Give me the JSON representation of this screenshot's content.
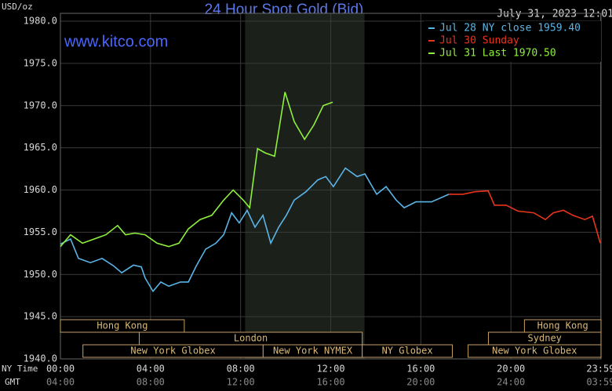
{
  "chart_data": {
    "type": "line",
    "title": "24 Hour Spot Gold (Bid)",
    "timestamp": "July 31, 2023 12:01",
    "y_unit": "USD/oz",
    "watermark": "www.kitco.com",
    "x_label": "NY Time",
    "secondary_x_label": "GMT",
    "xlim": [
      0,
      24
    ],
    "ylim": [
      1940,
      1980
    ],
    "xticks": [
      {
        "value": 0,
        "label": "00:00"
      },
      {
        "value": 4,
        "label": "04:00"
      },
      {
        "value": 8,
        "label": "08:00"
      },
      {
        "value": 12,
        "label": "12:00"
      },
      {
        "value": 16,
        "label": "16:00"
      },
      {
        "value": 20,
        "label": "20:00"
      },
      {
        "value": 23.98,
        "label": "23:59"
      }
    ],
    "secondary_xticks": [
      {
        "value": 0,
        "label": "04:00"
      },
      {
        "value": 4,
        "label": "08:00"
      },
      {
        "value": 8,
        "label": "12:00"
      },
      {
        "value": 12,
        "label": "16:00"
      },
      {
        "value": 16,
        "label": "20:00"
      },
      {
        "value": 20,
        "label": "24:00"
      },
      {
        "value": 23.98,
        "label": "03:59"
      }
    ],
    "yticks": [
      {
        "value": 1940,
        "label": "1940.0"
      },
      {
        "value": 1945,
        "label": "1945.0"
      },
      {
        "value": 1950,
        "label": "1950.0"
      },
      {
        "value": 1955,
        "label": "1955.0"
      },
      {
        "value": 1960,
        "label": "1960.0"
      },
      {
        "value": 1965,
        "label": "1965.0"
      },
      {
        "value": 1970,
        "label": "1970.0"
      },
      {
        "value": 1975,
        "label": "1975.0"
      },
      {
        "value": 1980,
        "label": "1980.0"
      }
    ],
    "grid": true,
    "legend": "top-right",
    "highlight_span": [
      8.2,
      13.5
    ],
    "sessions": [
      {
        "label": "Hong Kong",
        "start": 0,
        "end": 5.5,
        "row": 0
      },
      {
        "label": "Hong Kong",
        "start": 20.6,
        "end": 24,
        "row": 0
      },
      {
        "label": "London",
        "start": 3.5,
        "end": 13.4,
        "row": 1
      },
      {
        "label": "Sydney",
        "start": 19.0,
        "end": 24,
        "row": 1
      },
      {
        "label": "New York Globex",
        "start": 1.0,
        "end": 9.0,
        "row": 2
      },
      {
        "label": "New York NYMEX",
        "start": 9.0,
        "end": 13.4,
        "row": 2
      },
      {
        "label": "NY Globex",
        "start": 13.4,
        "end": 17.4,
        "row": 2
      },
      {
        "label": "New York Globex",
        "start": 18.1,
        "end": 24,
        "row": 2
      }
    ],
    "series": [
      {
        "name": "Jul 28 NY close 1959.40",
        "color": "#5ab4e6",
        "x": [
          0,
          0.45,
          0.8,
          1.33,
          1.85,
          2.37,
          2.72,
          3.24,
          3.59,
          3.76,
          4.11,
          4.46,
          4.81,
          5.33,
          5.68,
          6.03,
          6.45,
          6.9,
          7.25,
          7.6,
          7.94,
          8.29,
          8.64,
          8.99,
          9.34,
          9.69,
          10.03,
          10.38,
          10.9,
          11.43,
          11.78,
          12.12,
          12.65,
          13.17,
          13.52,
          14.04,
          14.46,
          14.91,
          15.26,
          15.78,
          16.48,
          17.25
        ],
        "values": [
          1953.6,
          1954.2,
          1951.9,
          1951.4,
          1951.9,
          1951.0,
          1950.2,
          1951.1,
          1950.9,
          1949.6,
          1948.0,
          1949.1,
          1948.6,
          1949.1,
          1949.1,
          1951.0,
          1953.0,
          1953.7,
          1954.7,
          1957.3,
          1956.1,
          1957.6,
          1955.6,
          1957.0,
          1953.7,
          1955.6,
          1957.0,
          1958.8,
          1959.8,
          1961.2,
          1961.6,
          1960.4,
          1962.6,
          1961.6,
          1961.9,
          1959.5,
          1960.4,
          1958.8,
          1957.9,
          1958.6,
          1958.6,
          1959.5
        ]
      },
      {
        "name": "Jul 30 Sunday",
        "color": "#e8341c",
        "x": [
          17.25,
          17.87,
          18.4,
          18.99,
          19.27,
          19.79,
          20.31,
          21.01,
          21.53,
          21.88,
          22.33,
          22.75,
          23.28,
          23.62,
          23.97
        ],
        "values": [
          1959.5,
          1959.5,
          1959.8,
          1959.9,
          1958.2,
          1958.2,
          1957.5,
          1957.3,
          1956.5,
          1957.3,
          1957.6,
          1957.0,
          1956.5,
          1956.9,
          1953.7
        ]
      },
      {
        "name": "Jul 31 Last 1970.50",
        "color": "#8ef03c",
        "x": [
          0,
          0.45,
          0.98,
          1.5,
          2.02,
          2.54,
          2.89,
          3.31,
          3.76,
          4.29,
          4.81,
          5.26,
          5.68,
          6.2,
          6.72,
          7.25,
          7.67,
          8.12,
          8.4,
          8.75,
          9.09,
          9.51,
          9.97,
          10.38,
          10.84,
          11.25,
          11.67,
          12.09
        ],
        "values": [
          1953.3,
          1954.7,
          1953.7,
          1954.2,
          1954.7,
          1955.8,
          1954.7,
          1954.9,
          1954.7,
          1953.7,
          1953.3,
          1953.7,
          1955.4,
          1956.5,
          1957.0,
          1958.8,
          1960.0,
          1958.8,
          1957.9,
          1964.9,
          1964.4,
          1964.0,
          1971.6,
          1968.1,
          1966.0,
          1967.7,
          1970.0,
          1970.4
        ]
      }
    ]
  }
}
